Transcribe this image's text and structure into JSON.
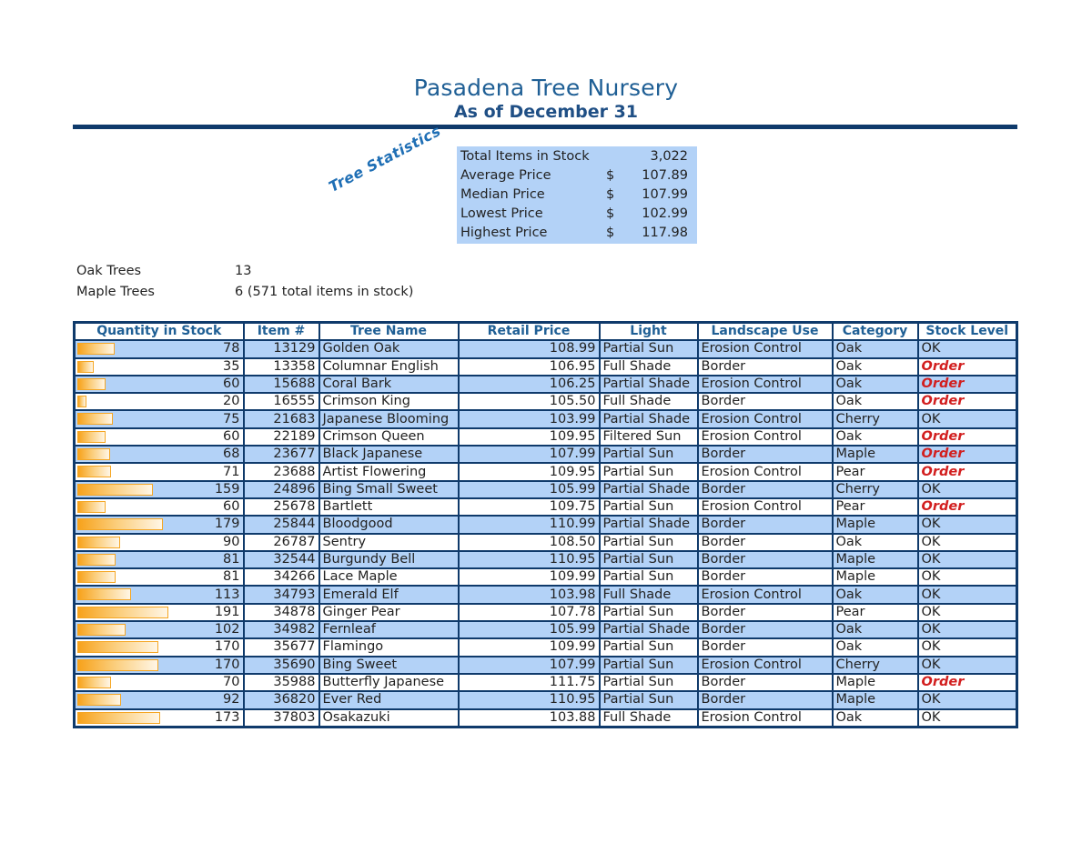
{
  "header": {
    "title": "Pasadena Tree Nursery",
    "subtitle": "As of December 31"
  },
  "stats_label": "Tree Statistics",
  "stats": [
    {
      "label": "Total Items in Stock",
      "currency": "",
      "value": "3,022"
    },
    {
      "label": "Average Price",
      "currency": "$",
      "value": "107.89"
    },
    {
      "label": "Median Price",
      "currency": "$",
      "value": "107.99"
    },
    {
      "label": "Lowest Price",
      "currency": "$",
      "value": "102.99"
    },
    {
      "label": "Highest Price",
      "currency": "$",
      "value": "117.98"
    }
  ],
  "summary": {
    "oak_label": "Oak Trees",
    "oak_value": "13",
    "maple_label": "Maple Trees",
    "maple_value": "6 (571 total items in stock)"
  },
  "table": {
    "columns": [
      "Quantity in Stock",
      "Item #",
      "Tree Name",
      "Retail Price",
      "Light",
      "Landscape Use",
      "Category",
      "Stock Level"
    ],
    "bar_color": "#f7a21b",
    "alt_row_color": "#b3d2f7",
    "order_color": "#d21f1f",
    "rows": [
      {
        "qty": "78",
        "item": "13129",
        "name": "Golden Oak",
        "price": "108.99",
        "light": "Partial Sun",
        "use": "Erosion Control",
        "category": "Oak",
        "stock": "OK"
      },
      {
        "qty": "35",
        "item": "13358",
        "name": "Columnar English",
        "price": "106.95",
        "light": "Full Shade",
        "use": "Border",
        "category": "Oak",
        "stock": "Order"
      },
      {
        "qty": "60",
        "item": "15688",
        "name": "Coral Bark",
        "price": "106.25",
        "light": "Partial Shade",
        "use": "Erosion Control",
        "category": "Oak",
        "stock": "Order"
      },
      {
        "qty": "20",
        "item": "16555",
        "name": "Crimson King",
        "price": "105.50",
        "light": "Full Shade",
        "use": "Border",
        "category": "Oak",
        "stock": "Order"
      },
      {
        "qty": "75",
        "item": "21683",
        "name": "Japanese Blooming",
        "price": "103.99",
        "light": "Partial Shade",
        "use": "Erosion Control",
        "category": "Cherry",
        "stock": "OK"
      },
      {
        "qty": "60",
        "item": "22189",
        "name": "Crimson Queen",
        "price": "109.95",
        "light": "Filtered Sun",
        "use": "Erosion Control",
        "category": "Oak",
        "stock": "Order"
      },
      {
        "qty": "68",
        "item": "23677",
        "name": "Black Japanese",
        "price": "107.99",
        "light": "Partial Sun",
        "use": "Border",
        "category": "Maple",
        "stock": "Order"
      },
      {
        "qty": "71",
        "item": "23688",
        "name": "Artist Flowering",
        "price": "109.95",
        "light": "Partial Sun",
        "use": "Erosion Control",
        "category": "Pear",
        "stock": "Order"
      },
      {
        "qty": "159",
        "item": "24896",
        "name": "Bing Small Sweet",
        "price": "105.99",
        "light": "Partial Shade",
        "use": "Border",
        "category": "Cherry",
        "stock": "OK"
      },
      {
        "qty": "60",
        "item": "25678",
        "name": "Bartlett",
        "price": "109.75",
        "light": "Partial Sun",
        "use": "Erosion Control",
        "category": "Pear",
        "stock": "Order"
      },
      {
        "qty": "179",
        "item": "25844",
        "name": "Bloodgood",
        "price": "110.99",
        "light": "Partial Shade",
        "use": "Border",
        "category": "Maple",
        "stock": "OK"
      },
      {
        "qty": "90",
        "item": "26787",
        "name": "Sentry",
        "price": "108.50",
        "light": "Partial Sun",
        "use": "Border",
        "category": "Oak",
        "stock": "OK"
      },
      {
        "qty": "81",
        "item": "32544",
        "name": "Burgundy Bell",
        "price": "110.95",
        "light": "Partial Sun",
        "use": "Border",
        "category": "Maple",
        "stock": "OK"
      },
      {
        "qty": "81",
        "item": "34266",
        "name": "Lace Maple",
        "price": "109.99",
        "light": "Partial Sun",
        "use": "Border",
        "category": "Maple",
        "stock": "OK"
      },
      {
        "qty": "113",
        "item": "34793",
        "name": "Emerald Elf",
        "price": "103.98",
        "light": "Full Shade",
        "use": "Erosion Control",
        "category": "Oak",
        "stock": "OK"
      },
      {
        "qty": "191",
        "item": "34878",
        "name": "Ginger Pear",
        "price": "107.78",
        "light": "Partial Sun",
        "use": "Border",
        "category": "Pear",
        "stock": "OK"
      },
      {
        "qty": "102",
        "item": "34982",
        "name": "Fernleaf",
        "price": "105.99",
        "light": "Partial Shade",
        "use": "Border",
        "category": "Oak",
        "stock": "OK"
      },
      {
        "qty": "170",
        "item": "35677",
        "name": "Flamingo",
        "price": "109.99",
        "light": "Partial Sun",
        "use": "Border",
        "category": "Oak",
        "stock": "OK"
      },
      {
        "qty": "170",
        "item": "35690",
        "name": "Bing Sweet",
        "price": "107.99",
        "light": "Partial Sun",
        "use": "Erosion Control",
        "category": "Cherry",
        "stock": "OK"
      },
      {
        "qty": "70",
        "item": "35988",
        "name": "Butterfly Japanese",
        "price": "111.75",
        "light": "Partial Sun",
        "use": "Border",
        "category": "Maple",
        "stock": "Order"
      },
      {
        "qty": "92",
        "item": "36820",
        "name": "Ever Red",
        "price": "110.95",
        "light": "Partial Sun",
        "use": "Border",
        "category": "Maple",
        "stock": "OK"
      },
      {
        "qty": "173",
        "item": "37803",
        "name": "Osakazuki",
        "price": "103.88",
        "light": "Full Shade",
        "use": "Erosion Control",
        "category": "Oak",
        "stock": "OK"
      }
    ]
  }
}
